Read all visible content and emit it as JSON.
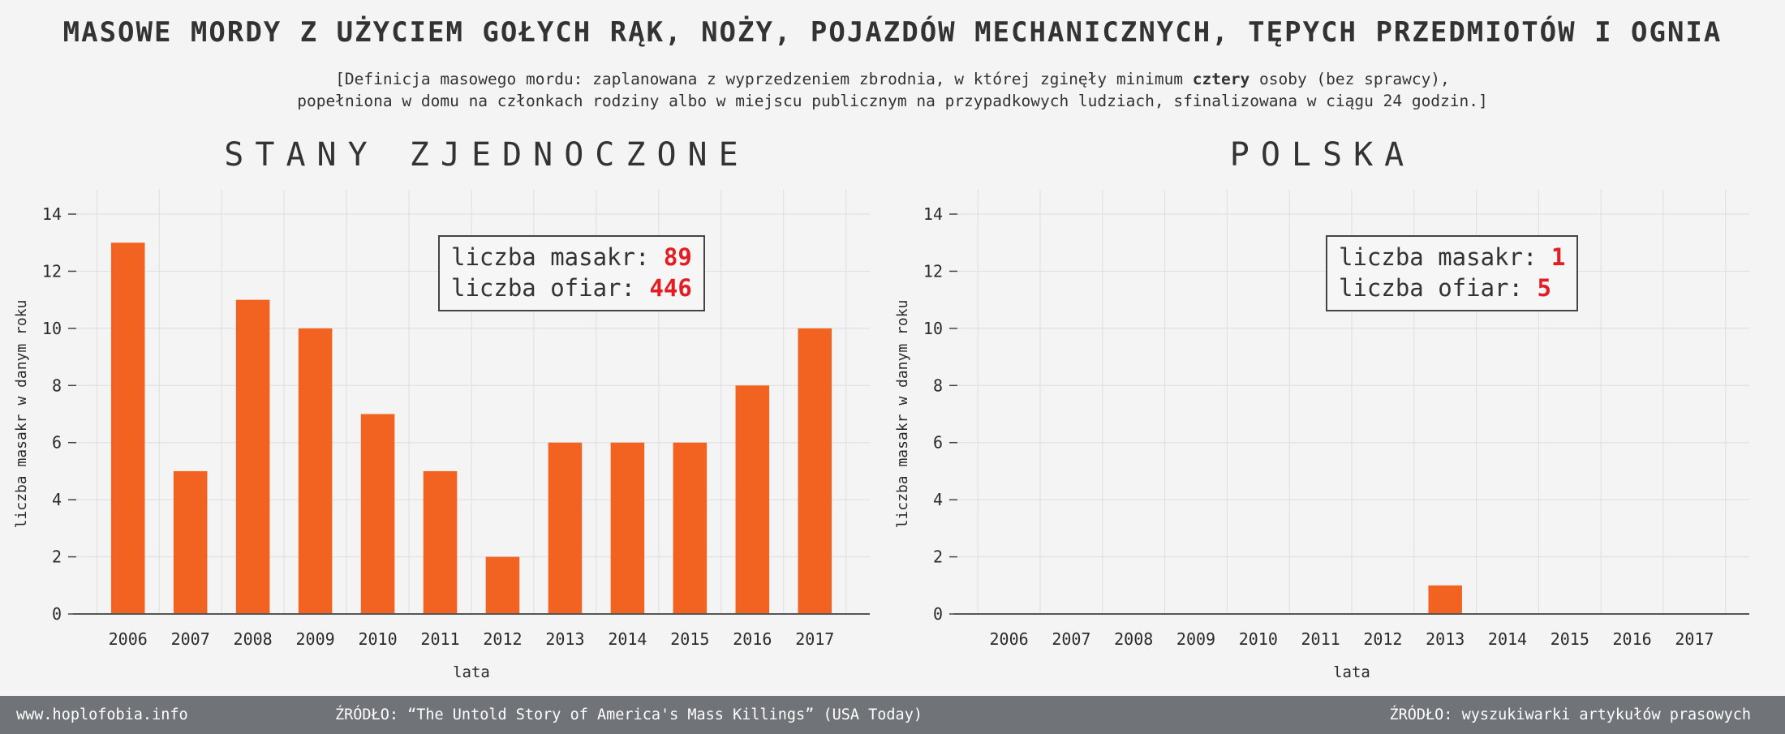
{
  "title": "MASOWE MORDY Z UŻYCIEM GOŁYCH RĄK, NOŻY, POJAZDÓW MECHANICZNYCH, TĘPYCH PRZEDMIOTÓW I OGNIA",
  "subtitle": {
    "line1_before": "[Definicja masowego mordu: zaplanowana z wyprzedzeniem zbrodnia, w której zginęły minimum ",
    "line1_bold": "cztery",
    "line1_after": " osoby (bez sprawcy),",
    "line2": "popełniona w domu na członkach rodziny albo w miejscu publicznym na przypadkowych ludziach, sfinalizowana w ciągu 24 godzin.]"
  },
  "colors": {
    "bar": "#f26322",
    "highlight": "#e41c23",
    "footer": "#707377",
    "background": "#f4f4f4"
  },
  "panels": [
    {
      "title": "STANY ZJEDNOCZONE",
      "stats": {
        "label_massacres": "liczba masakr:",
        "massacres": "89",
        "label_victims": "liczba ofiar:",
        "victims": "446"
      }
    },
    {
      "title": "POLSKA",
      "stats": {
        "label_massacres": "liczba masakr:",
        "massacres": "1",
        "label_victims": "liczba ofiar:",
        "victims": "5"
      }
    }
  ],
  "chart_data": [
    {
      "type": "bar",
      "title": "STANY ZJEDNOCZONE",
      "categories": [
        "2006",
        "2007",
        "2008",
        "2009",
        "2010",
        "2011",
        "2012",
        "2013",
        "2014",
        "2015",
        "2016",
        "2017"
      ],
      "values": [
        13,
        5,
        11,
        10,
        7,
        5,
        2,
        6,
        6,
        6,
        8,
        10
      ],
      "xlabel": "lata",
      "ylabel": "liczba masakr w danym roku",
      "ylim": [
        0,
        14
      ],
      "yticks": [
        0,
        2,
        4,
        6,
        8,
        10,
        12,
        14
      ],
      "grid": true
    },
    {
      "type": "bar",
      "title": "POLSKA",
      "categories": [
        "2006",
        "2007",
        "2008",
        "2009",
        "2010",
        "2011",
        "2012",
        "2013",
        "2014",
        "2015",
        "2016",
        "2017"
      ],
      "values": [
        0,
        0,
        0,
        0,
        0,
        0,
        0,
        1,
        0,
        0,
        0,
        0
      ],
      "xlabel": "lata",
      "ylabel": "liczba masakr w danym roku",
      "ylim": [
        0,
        14
      ],
      "yticks": [
        0,
        2,
        4,
        6,
        8,
        10,
        12,
        14
      ],
      "grid": true
    }
  ],
  "footer": {
    "site": "www.hoplofobia.info",
    "source_us": "ŹRÓDŁO: “The Untold Story of America's Mass Killings” (USA Today)",
    "source_pl": "ŹRÓDŁO: wyszukiwarki artykułów prasowych"
  }
}
